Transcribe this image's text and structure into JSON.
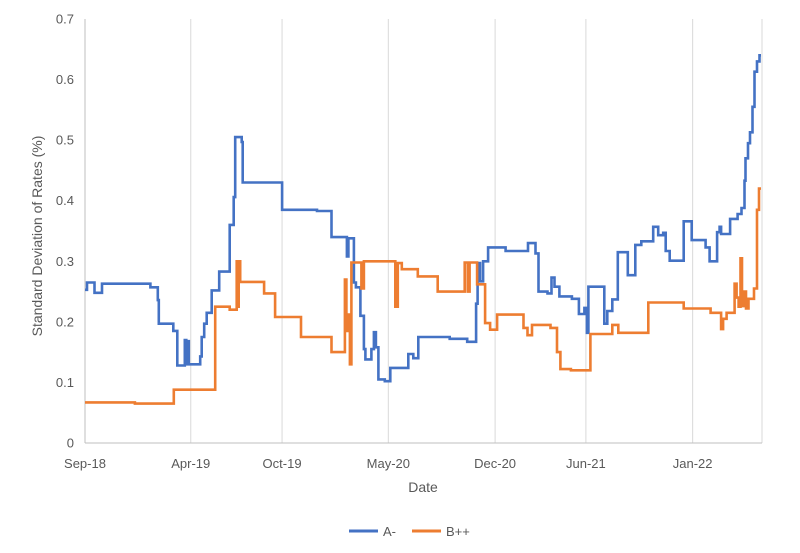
{
  "chart_data": {
    "type": "line",
    "step": true,
    "title": "",
    "xlabel": "Date",
    "ylabel": "Standard Deviation of Rates (%)",
    "ylim": [
      0,
      0.7
    ],
    "yticks": [
      0,
      0.1,
      0.2,
      0.3,
      0.4,
      0.5,
      0.6,
      0.7
    ],
    "ytick_labels": [
      "0",
      "0.1",
      "0.2",
      "0.3",
      "0.4",
      "0.5",
      "0.6",
      "0.7"
    ],
    "xlim": [
      "2018-09-01",
      "2022-05-20"
    ],
    "xticks": [
      "2018-09-01",
      "2019-04-01",
      "2019-10-01",
      "2020-05-01",
      "2020-12-01",
      "2021-06-01",
      "2022-01-01"
    ],
    "xtick_labels": [
      "Sep-18",
      "Apr-19",
      "Oct-19",
      "May-20",
      "Dec-20",
      "Jun-21",
      "Jan-22"
    ],
    "grid": {
      "x": true,
      "y": false
    },
    "legend": {
      "position": "bottom"
    },
    "series": [
      {
        "name": "A-",
        "color": "#4472C4",
        "points": [
          [
            "2018-09-01",
            0.253
          ],
          [
            "2018-09-05",
            0.265
          ],
          [
            "2018-09-20",
            0.248
          ],
          [
            "2018-10-05",
            0.263
          ],
          [
            "2019-01-10",
            0.257
          ],
          [
            "2019-01-25",
            0.236
          ],
          [
            "2019-01-27",
            0.197
          ],
          [
            "2019-02-25",
            0.185
          ],
          [
            "2019-03-05",
            0.128
          ],
          [
            "2019-03-20",
            0.17
          ],
          [
            "2019-03-23",
            0.13
          ],
          [
            "2019-03-26",
            0.168
          ],
          [
            "2019-03-28",
            0.13
          ],
          [
            "2019-04-20",
            0.143
          ],
          [
            "2019-04-23",
            0.175
          ],
          [
            "2019-04-28",
            0.197
          ],
          [
            "2019-05-03",
            0.215
          ],
          [
            "2019-05-13",
            0.252
          ],
          [
            "2019-05-28",
            0.283
          ],
          [
            "2019-06-18",
            0.36
          ],
          [
            "2019-06-26",
            0.406
          ],
          [
            "2019-06-29",
            0.505
          ],
          [
            "2019-07-12",
            0.497
          ],
          [
            "2019-07-14",
            0.43
          ],
          [
            "2019-10-01",
            0.385
          ],
          [
            "2019-12-10",
            0.383
          ],
          [
            "2020-01-08",
            0.34
          ],
          [
            "2020-02-08",
            0.308
          ],
          [
            "2020-02-11",
            0.338
          ],
          [
            "2020-02-22",
            0.265
          ],
          [
            "2020-02-26",
            0.257
          ],
          [
            "2020-03-06",
            0.21
          ],
          [
            "2020-03-13",
            0.155
          ],
          [
            "2020-03-16",
            0.138
          ],
          [
            "2020-03-28",
            0.155
          ],
          [
            "2020-04-02",
            0.183
          ],
          [
            "2020-04-06",
            0.158
          ],
          [
            "2020-04-11",
            0.105
          ],
          [
            "2020-04-24",
            0.102
          ],
          [
            "2020-05-05",
            0.124
          ],
          [
            "2020-06-10",
            0.147
          ],
          [
            "2020-06-20",
            0.14
          ],
          [
            "2020-06-30",
            0.175
          ],
          [
            "2020-09-01",
            0.172
          ],
          [
            "2020-10-06",
            0.167
          ],
          [
            "2020-10-24",
            0.23
          ],
          [
            "2020-10-27",
            0.297
          ],
          [
            "2020-11-01",
            0.267
          ],
          [
            "2020-11-07",
            0.3
          ],
          [
            "2020-11-17",
            0.323
          ],
          [
            "2020-12-22",
            0.317
          ],
          [
            "2021-02-05",
            0.33
          ],
          [
            "2021-02-20",
            0.313
          ],
          [
            "2021-02-26",
            0.25
          ],
          [
            "2021-03-16",
            0.247
          ],
          [
            "2021-03-24",
            0.273
          ],
          [
            "2021-03-30",
            0.258
          ],
          [
            "2021-04-09",
            0.242
          ],
          [
            "2021-05-04",
            0.238
          ],
          [
            "2021-05-18",
            0.213
          ],
          [
            "2021-05-29",
            0.223
          ],
          [
            "2021-06-03",
            0.182
          ],
          [
            "2021-06-06",
            0.258
          ],
          [
            "2021-07-08",
            0.197
          ],
          [
            "2021-07-14",
            0.218
          ],
          [
            "2021-07-24",
            0.237
          ],
          [
            "2021-08-04",
            0.315
          ],
          [
            "2021-08-24",
            0.277
          ],
          [
            "2021-09-08",
            0.327
          ],
          [
            "2021-09-20",
            0.333
          ],
          [
            "2021-10-14",
            0.357
          ],
          [
            "2021-10-24",
            0.343
          ],
          [
            "2021-11-03",
            0.347
          ],
          [
            "2021-11-08",
            0.317
          ],
          [
            "2021-11-16",
            0.301
          ],
          [
            "2021-12-14",
            0.366
          ],
          [
            "2021-12-30",
            0.335
          ],
          [
            "2022-01-27",
            0.323
          ],
          [
            "2022-02-04",
            0.3
          ],
          [
            "2022-02-19",
            0.348
          ],
          [
            "2022-02-24",
            0.357
          ],
          [
            "2022-02-27",
            0.345
          ],
          [
            "2022-03-17",
            0.37
          ],
          [
            "2022-04-01",
            0.378
          ],
          [
            "2022-04-09",
            0.388
          ],
          [
            "2022-04-15",
            0.433
          ],
          [
            "2022-04-17",
            0.47
          ],
          [
            "2022-04-22",
            0.495
          ],
          [
            "2022-04-26",
            0.513
          ],
          [
            "2022-05-01",
            0.555
          ],
          [
            "2022-05-05",
            0.613
          ],
          [
            "2022-05-10",
            0.63
          ],
          [
            "2022-05-15",
            0.64
          ],
          [
            "2022-05-18",
            0.64
          ]
        ]
      },
      {
        "name": "B++",
        "color": "#ED7D31",
        "points": [
          [
            "2018-09-01",
            0.067
          ],
          [
            "2018-12-10",
            0.065
          ],
          [
            "2019-02-26",
            0.088
          ],
          [
            "2019-05-20",
            0.225
          ],
          [
            "2019-06-18",
            0.22
          ],
          [
            "2019-07-02",
            0.3
          ],
          [
            "2019-07-04",
            0.225
          ],
          [
            "2019-07-06",
            0.3
          ],
          [
            "2019-07-09",
            0.266
          ],
          [
            "2019-08-26",
            0.247
          ],
          [
            "2019-09-17",
            0.208
          ],
          [
            "2019-11-08",
            0.175
          ],
          [
            "2020-01-08",
            0.15
          ],
          [
            "2020-02-04",
            0.27
          ],
          [
            "2020-02-07",
            0.21
          ],
          [
            "2020-02-09",
            0.185
          ],
          [
            "2020-02-11",
            0.212
          ],
          [
            "2020-02-14",
            0.13
          ],
          [
            "2020-02-17",
            0.298
          ],
          [
            "2020-03-08",
            0.255
          ],
          [
            "2020-03-13",
            0.3
          ],
          [
            "2020-05-15",
            0.225
          ],
          [
            "2020-05-20",
            0.297
          ],
          [
            "2020-05-28",
            0.287
          ],
          [
            "2020-06-29",
            0.275
          ],
          [
            "2020-08-08",
            0.25
          ],
          [
            "2020-10-01",
            0.298
          ],
          [
            "2020-10-07",
            0.25
          ],
          [
            "2020-10-11",
            0.298
          ],
          [
            "2020-10-26",
            0.262
          ],
          [
            "2020-11-11",
            0.198
          ],
          [
            "2020-11-21",
            0.187
          ],
          [
            "2020-12-05",
            0.212
          ],
          [
            "2021-01-08",
            0.212
          ],
          [
            "2021-01-27",
            0.19
          ],
          [
            "2021-02-04",
            0.178
          ],
          [
            "2021-02-13",
            0.195
          ],
          [
            "2021-03-22",
            0.19
          ],
          [
            "2021-04-04",
            0.15
          ],
          [
            "2021-04-11",
            0.122
          ],
          [
            "2021-05-02",
            0.12
          ],
          [
            "2021-06-10",
            0.18
          ],
          [
            "2021-07-24",
            0.195
          ],
          [
            "2021-08-05",
            0.182
          ],
          [
            "2021-10-04",
            0.232
          ],
          [
            "2021-12-14",
            0.222
          ],
          [
            "2022-02-06",
            0.215
          ],
          [
            "2022-02-27",
            0.188
          ],
          [
            "2022-03-03",
            0.205
          ],
          [
            "2022-03-10",
            0.215
          ],
          [
            "2022-03-24",
            0.215
          ],
          [
            "2022-03-26",
            0.263
          ],
          [
            "2022-03-30",
            0.24
          ],
          [
            "2022-04-03",
            0.225
          ],
          [
            "2022-04-07",
            0.305
          ],
          [
            "2022-04-10",
            0.226
          ],
          [
            "2022-04-13",
            0.25
          ],
          [
            "2022-04-18",
            0.222
          ],
          [
            "2022-04-23",
            0.238
          ],
          [
            "2022-05-04",
            0.255
          ],
          [
            "2022-05-10",
            0.385
          ],
          [
            "2022-05-14",
            0.42
          ],
          [
            "2022-05-18",
            0.42
          ]
        ]
      }
    ]
  }
}
